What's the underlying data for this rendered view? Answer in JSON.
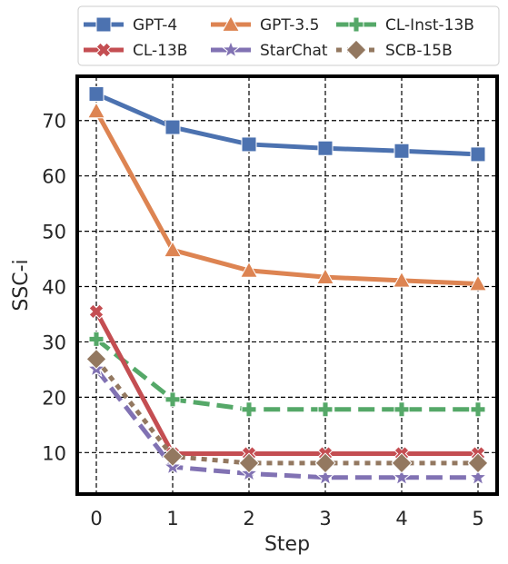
{
  "chart_data": {
    "type": "line",
    "xlabel": "Step",
    "ylabel": "SSC-i",
    "x": [
      0,
      1,
      2,
      3,
      4,
      5
    ],
    "xlim": [
      -0.25,
      5.25
    ],
    "ylim": [
      2.5,
      78
    ],
    "xticks": [
      0,
      1,
      2,
      3,
      4,
      5
    ],
    "yticks": [
      10,
      20,
      30,
      40,
      50,
      60,
      70
    ],
    "grid": true,
    "legend_position": "top",
    "series": [
      {
        "name": "GPT-4",
        "color": "#4c72b0",
        "dash": "solid",
        "marker": "square",
        "values": [
          74.8,
          68.8,
          65.7,
          65.0,
          64.5,
          63.9
        ]
      },
      {
        "name": "GPT-3.5",
        "color": "#dd8452",
        "dash": "solid",
        "marker": "triangle",
        "values": [
          71.7,
          46.6,
          42.9,
          41.7,
          41.1,
          40.5
        ]
      },
      {
        "name": "CL-Inst-13B",
        "color": "#55a868",
        "dash": "dashed",
        "marker": "plus",
        "values": [
          30.5,
          19.6,
          17.8,
          17.8,
          17.8,
          17.8
        ]
      },
      {
        "name": "CL-13B",
        "color": "#c44e52",
        "dash": "solid",
        "marker": "x",
        "values": [
          35.5,
          9.8,
          9.8,
          9.8,
          9.8,
          9.8
        ]
      },
      {
        "name": "StarChat",
        "color": "#8172b3",
        "dash": "dashed",
        "marker": "star",
        "values": [
          25.1,
          7.4,
          6.2,
          5.5,
          5.5,
          5.5
        ]
      },
      {
        "name": "SCB-15B",
        "color": "#937860",
        "dash": "dotted",
        "marker": "diamond",
        "values": [
          26.9,
          9.3,
          8.1,
          8.1,
          8.1,
          8.1
        ]
      }
    ]
  }
}
